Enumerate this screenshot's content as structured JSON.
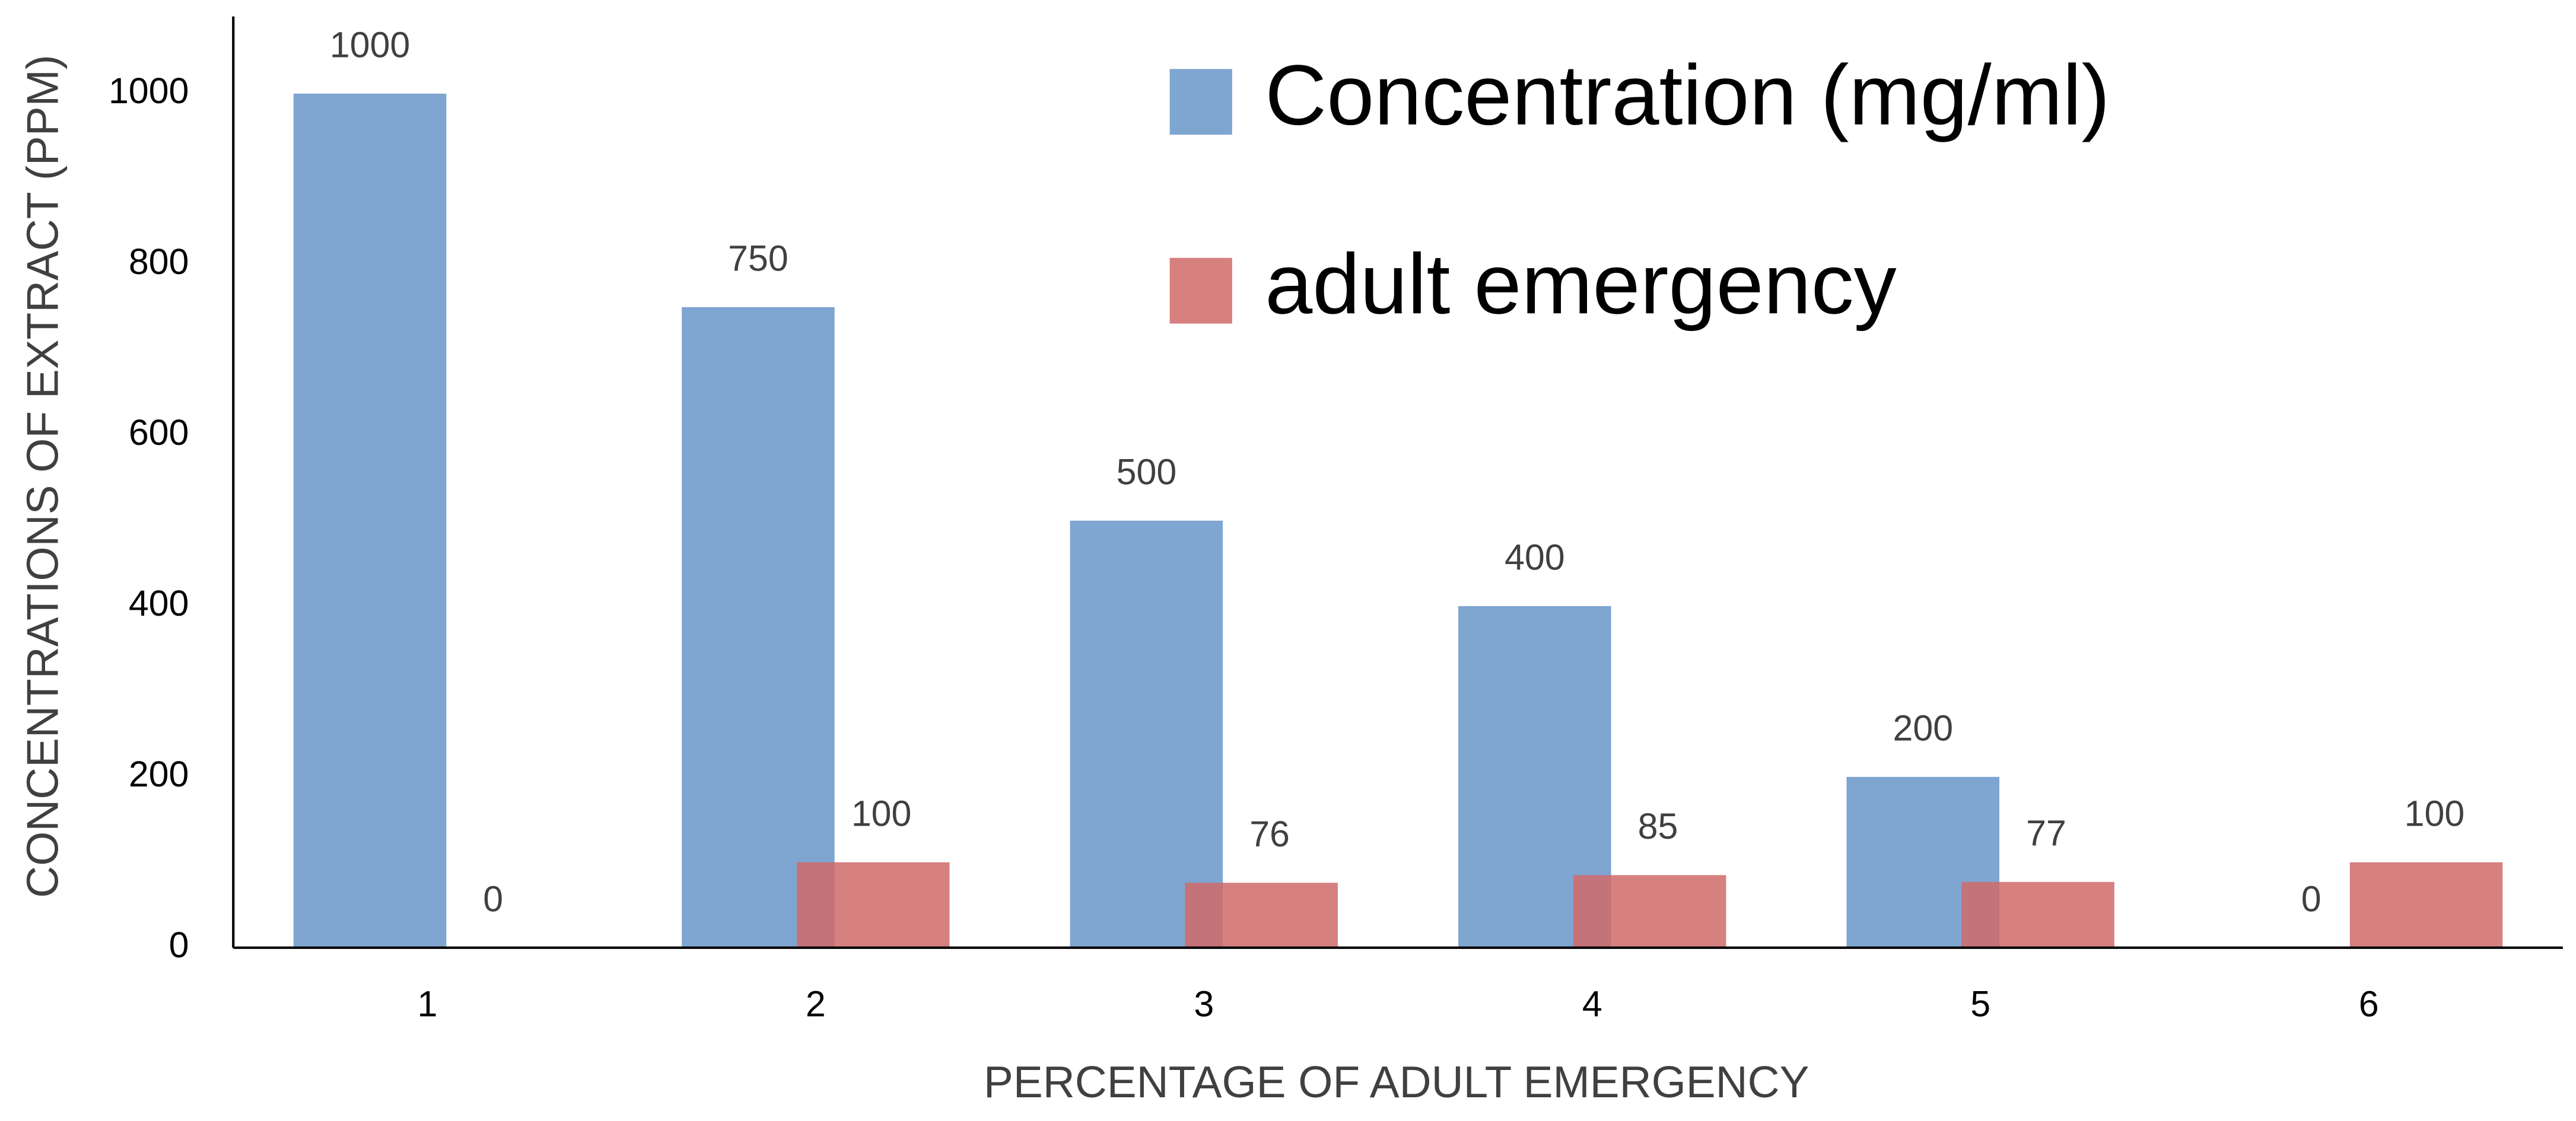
{
  "chart_data": {
    "type": "bar",
    "x_label": "PERCENTAGE OF ADULT EMERGENCY",
    "y_label": "CONCENTRATIONS OF EXTRACT (PPM)",
    "categories": [
      "1",
      "2",
      "3",
      "4",
      "5",
      "6"
    ],
    "series": [
      {
        "name": "Concentration (mg/ml)",
        "color": "#7fa5d1",
        "values": [
          1000,
          750,
          500,
          400,
          200,
          0
        ]
      },
      {
        "name": "adult emergency",
        "color": "#d06a6a",
        "values": [
          0,
          100,
          76,
          85,
          77,
          100
        ]
      }
    ],
    "ylim": [
      0,
      1080
    ],
    "yticks": [
      0,
      200,
      400,
      600,
      800,
      1000
    ],
    "grid": false,
    "legend": "top-right"
  }
}
